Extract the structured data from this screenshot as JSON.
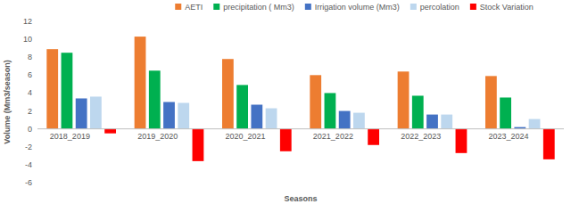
{
  "chart_data": {
    "type": "bar",
    "x_label": "Seasons",
    "y_label": "Volume (Mm3/season)",
    "categories": [
      "2018_2019",
      "2019_2020",
      "2020_2021",
      "2021_2022",
      "2022_2023",
      "2023_2024"
    ],
    "series": [
      {
        "name": "AETI",
        "color": "#ed7d31",
        "values": [
          8.9,
          10.3,
          7.8,
          6.0,
          6.4,
          5.9
        ]
      },
      {
        "name": "precipitation ( Mm3)",
        "color": "#00b050",
        "values": [
          8.5,
          6.5,
          4.9,
          4.0,
          3.7,
          3.5
        ]
      },
      {
        "name": "Irrigation volume (Mm3)",
        "color": "#4472c4",
        "values": [
          3.4,
          3.0,
          2.7,
          2.0,
          1.6,
          0.2
        ]
      },
      {
        "name": "percolation",
        "color": "#bdd7ee",
        "values": [
          3.6,
          2.9,
          2.3,
          1.8,
          1.6,
          1.1
        ]
      },
      {
        "name": "Stock Variation",
        "color": "#ff0000",
        "values": [
          -0.5,
          -3.6,
          -2.5,
          -1.8,
          -2.7,
          -3.4
        ]
      }
    ],
    "ylim": [
      -6,
      12
    ],
    "yticks": [
      -6,
      -4,
      -2,
      0,
      2,
      4,
      6,
      8,
      10,
      12
    ],
    "grid": false,
    "legend": "top"
  }
}
